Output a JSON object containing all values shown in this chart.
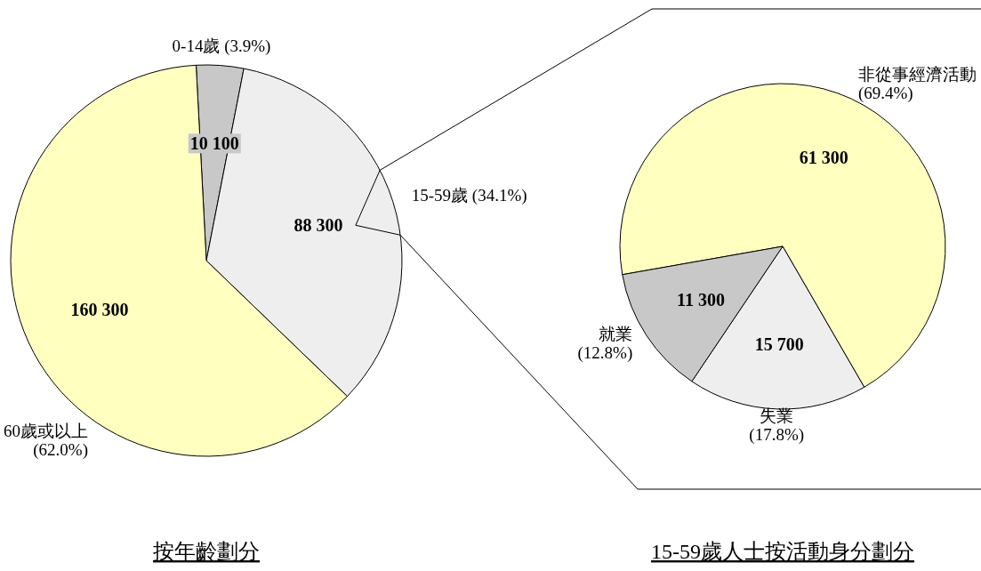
{
  "chart_data": [
    {
      "type": "pie",
      "title": "按年齡劃分",
      "categories": [
        "0-14歲 (3.9%)",
        "15-59歲 (34.1%)",
        "60歲或以上\n(62.0%)"
      ],
      "values": [
        10100,
        88300,
        160300
      ],
      "value_labels": [
        "10 100",
        "88 300",
        "160 300"
      ],
      "colors": [
        "#c8c8c8",
        "#eeeeee",
        "#ffffc0"
      ]
    },
    {
      "type": "pie",
      "title": "15-59歲人士按活動身分劃分",
      "categories": [
        "非從事經濟活動\n(69.4%)",
        "失業\n(17.8%)",
        "就業\n(12.8%)"
      ],
      "values": [
        61300,
        15700,
        11300
      ],
      "value_labels": [
        "61 300",
        "15 700",
        "11 300"
      ],
      "colors": [
        "#ffffc0",
        "#eeeeee",
        "#c8c8c8"
      ]
    }
  ]
}
